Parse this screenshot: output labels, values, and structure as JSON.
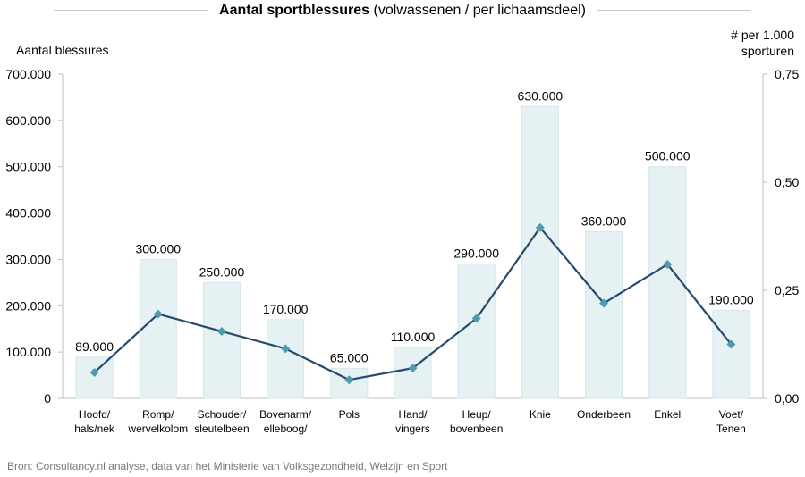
{
  "title_bold": "Aantal sportblessures",
  "title_rest": "(volwassenen / per lichaamsdeel)",
  "ylabel_left": "Aantal blessures",
  "ylabel_right_line1": "# per 1.000",
  "ylabel_right_line2": "sporturen",
  "source": "Bron: Consultancy.nl analyse, data van het Ministerie van Volksgezondheid, Welzijn en Sport",
  "colors": {
    "bar": "#e6f1f3",
    "bar_stroke": "#d6e6ea",
    "line": "#254b6e",
    "marker": "#4e9bb0",
    "axis": "#bfbfbf"
  },
  "chart_data": {
    "type": "bar",
    "categories": [
      [
        "Hoofd/",
        "hals/nek"
      ],
      [
        "Romp/",
        "wervelkolom"
      ],
      [
        "Schouder/",
        "sleutelbeen"
      ],
      [
        "Bovenarm/",
        "elleboog/"
      ],
      [
        "Pols"
      ],
      [
        "Hand/",
        "vingers"
      ],
      [
        "Heup/",
        "bovenbeen"
      ],
      [
        "Knie"
      ],
      [
        "Onderbeen"
      ],
      [
        "Enkel"
      ],
      [
        "Voet/",
        "Tenen"
      ]
    ],
    "series": [
      {
        "type": "bar",
        "axis": "left",
        "values": [
          89000,
          300000,
          250000,
          170000,
          65000,
          110000,
          290000,
          630000,
          360000,
          500000,
          190000
        ],
        "labels": [
          "89.000",
          "300.000",
          "250.000",
          "170.000",
          "65.000",
          "110.000",
          "290.000",
          "630.000",
          "360.000",
          "500.000",
          "190.000"
        ]
      },
      {
        "type": "line",
        "axis": "right",
        "values": [
          0.06,
          0.195,
          0.155,
          0.115,
          0.043,
          0.07,
          0.185,
          0.395,
          0.22,
          0.31,
          0.125
        ]
      }
    ],
    "y_left": {
      "min": 0,
      "max": 700000,
      "ticks": [
        "0",
        "100.000",
        "200.000",
        "300.000",
        "400.000",
        "500.000",
        "600.000",
        "700.000"
      ],
      "tick_values": [
        0,
        100000,
        200000,
        300000,
        400000,
        500000,
        600000,
        700000
      ]
    },
    "y_right": {
      "min": 0,
      "max": 0.75,
      "ticks": [
        "0,00",
        "0,25",
        "0,50",
        "0,75"
      ],
      "tick_values": [
        0,
        0.25,
        0.5,
        0.75
      ]
    },
    "grid": false,
    "legend": "none"
  }
}
